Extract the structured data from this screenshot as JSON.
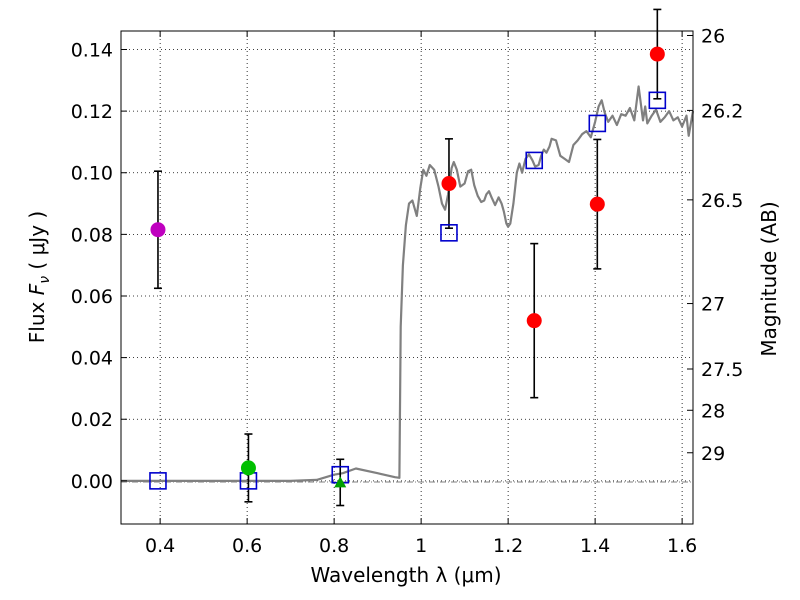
{
  "chart_data": {
    "type": "scatter",
    "xlabel": "Wavelength  λ (μm)",
    "ylabel_left": {
      "prefix": "Flux  ",
      "symbol": "F",
      "subscript": "ν",
      "unit": "  ( μJy )"
    },
    "ylabel_right": "Magnitude (AB)",
    "xlim": [
      0.31,
      1.625
    ],
    "ylim": [
      -0.014,
      0.146
    ],
    "grid": true,
    "x_ticks": [
      0.4,
      0.6,
      0.8,
      1.0,
      1.2,
      1.4,
      1.6
    ],
    "x_tick_labels": [
      "0.4",
      "0.6",
      "0.8",
      "1",
      "1.2",
      "1.4",
      "1.6"
    ],
    "y_ticks": [
      0.0,
      0.02,
      0.04,
      0.06,
      0.08,
      0.1,
      0.12,
      0.14
    ],
    "y_tick_labels": [
      "0.00",
      "0.02",
      "0.04",
      "0.06",
      "0.08",
      "0.10",
      "0.12",
      "0.14"
    ],
    "magnitude_ticks": [
      {
        "mag": 26,
        "label": "26"
      },
      {
        "mag": 26.2,
        "label": "26.2"
      },
      {
        "mag": 26.5,
        "label": "26.5"
      },
      {
        "mag": 27,
        "label": "27"
      },
      {
        "mag": 27.5,
        "label": "27.5"
      },
      {
        "mag": 28,
        "label": "28"
      },
      {
        "mag": 29,
        "label": "29"
      }
    ],
    "observed": [
      {
        "x": 0.395,
        "y": 0.0815,
        "err": 0.019,
        "color": "#bf00bf",
        "marker": "circle"
      },
      {
        "x": 0.603,
        "y": 0.0042,
        "err": 0.011,
        "color": "#00bf00",
        "marker": "circle"
      },
      {
        "x": 0.814,
        "y": -0.0005,
        "err": 0.0075,
        "color": "#00a000",
        "marker": "triangle"
      },
      {
        "x": 1.064,
        "y": 0.0965,
        "err": 0.0145,
        "color": "#ff0000",
        "marker": "circle"
      },
      {
        "x": 1.26,
        "y": 0.052,
        "err": 0.025,
        "color": "#ff0000",
        "marker": "circle"
      },
      {
        "x": 1.405,
        "y": 0.0898,
        "err": 0.021,
        "color": "#ff0000",
        "marker": "circle"
      },
      {
        "x": 1.543,
        "y": 0.1385,
        "err": 0.0145,
        "color": "#ff0000",
        "marker": "circle"
      }
    ],
    "model_photometry": {
      "color": "#0000cc",
      "marker": "square",
      "points": [
        {
          "x": 0.395,
          "y": 0.0
        },
        {
          "x": 0.603,
          "y": 0.0
        },
        {
          "x": 0.814,
          "y": 0.002
        },
        {
          "x": 1.064,
          "y": 0.0805
        },
        {
          "x": 1.26,
          "y": 0.104
        },
        {
          "x": 1.405,
          "y": 0.116
        },
        {
          "x": 1.543,
          "y": 0.1235
        }
      ]
    },
    "model_sed": {
      "color": "#808080",
      "x": [
        0.31,
        0.5,
        0.7,
        0.76,
        0.8,
        0.82,
        0.85,
        0.9,
        0.94,
        0.95,
        0.953,
        0.958,
        0.965,
        0.972,
        0.98,
        0.99,
        0.998,
        1.005,
        1.012,
        1.02,
        1.03,
        1.04,
        1.048,
        1.055,
        1.062,
        1.07,
        1.075,
        1.082,
        1.09,
        1.1,
        1.108,
        1.115,
        1.122,
        1.13,
        1.138,
        1.145,
        1.15,
        1.156,
        1.162,
        1.17,
        1.178,
        1.185,
        1.19,
        1.196,
        1.2,
        1.205,
        1.212,
        1.22,
        1.226,
        1.232,
        1.24,
        1.248,
        1.256,
        1.262,
        1.27,
        1.276,
        1.282,
        1.288,
        1.295,
        1.3,
        1.31,
        1.32,
        1.33,
        1.34,
        1.35,
        1.36,
        1.37,
        1.38,
        1.39,
        1.4,
        1.408,
        1.415,
        1.422,
        1.43,
        1.44,
        1.45,
        1.46,
        1.47,
        1.48,
        1.49,
        1.5,
        1.51,
        1.515,
        1.52,
        1.53,
        1.54,
        1.55,
        1.56,
        1.57,
        1.58,
        1.59,
        1.6,
        1.61,
        1.615,
        1.625
      ],
      "y": [
        0.0,
        0.0,
        0.0,
        0.0003,
        0.002,
        0.0025,
        0.004,
        0.0025,
        0.0012,
        0.001,
        0.05,
        0.07,
        0.083,
        0.09,
        0.091,
        0.086,
        0.095,
        0.101,
        0.099,
        0.1025,
        0.101,
        0.0955,
        0.09,
        0.088,
        0.093,
        0.1015,
        0.1035,
        0.101,
        0.0955,
        0.0965,
        0.1005,
        0.101,
        0.096,
        0.0925,
        0.0905,
        0.091,
        0.093,
        0.094,
        0.092,
        0.0895,
        0.092,
        0.09,
        0.0875,
        0.0835,
        0.0825,
        0.0835,
        0.09,
        0.1,
        0.103,
        0.1,
        0.1045,
        0.106,
        0.104,
        0.102,
        0.1025,
        0.1055,
        0.1075,
        0.1065,
        0.1085,
        0.111,
        0.1105,
        0.1055,
        0.1045,
        0.1035,
        0.109,
        0.1105,
        0.1125,
        0.1135,
        0.1115,
        0.1165,
        0.1215,
        0.1235,
        0.1195,
        0.1165,
        0.1185,
        0.1155,
        0.119,
        0.1185,
        0.121,
        0.117,
        0.128,
        0.117,
        0.1215,
        0.116,
        0.1185,
        0.1205,
        0.1165,
        0.118,
        0.12,
        0.117,
        0.118,
        0.115,
        0.1185,
        0.112,
        0.12
      ]
    }
  }
}
